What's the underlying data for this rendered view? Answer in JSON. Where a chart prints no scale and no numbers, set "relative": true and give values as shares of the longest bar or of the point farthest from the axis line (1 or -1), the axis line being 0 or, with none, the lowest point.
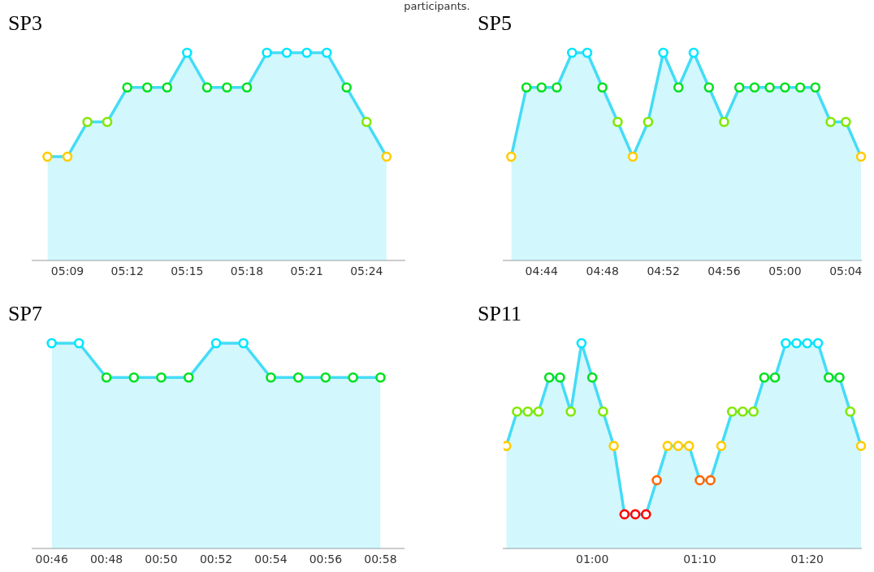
{
  "chart_data": [
    {
      "type": "area",
      "title": "SP3",
      "relative": true,
      "marker": "circle",
      "grid": false,
      "legend": false,
      "annotations": [
        "participants."
      ],
      "xlim": [
        5.1208,
        5.4317
      ],
      "xticks": [
        {
          "value": 5.15,
          "label": "05:09"
        },
        {
          "value": 5.2,
          "label": "05:12"
        },
        {
          "value": 5.25,
          "label": "05:15"
        },
        {
          "value": 5.3,
          "label": "05:18"
        },
        {
          "value": 5.35,
          "label": "05:21"
        },
        {
          "value": 5.4,
          "label": "05:24"
        }
      ],
      "x": [
        5.1333,
        5.15,
        5.1667,
        5.1833,
        5.2,
        5.2167,
        5.2333,
        5.25,
        5.2667,
        5.2833,
        5.3,
        5.3167,
        5.3333,
        5.35,
        5.3667,
        5.3833,
        5.4,
        5.4167
      ],
      "series": [
        {
          "color": "#44dcf6",
          "colors": [
            "#ffcc00",
            "#ffcc00",
            "#80e800",
            "#80e800",
            "#00e020",
            "#00e020",
            "#00e020",
            "#00e5ff",
            "#00e020",
            "#00e020",
            "#00e020",
            "#00e5ff",
            "#00e5ff",
            "#00e5ff",
            "#00e5ff",
            "#00e020",
            "#80e800",
            "#ffcc00"
          ],
          "values": [
            0.5,
            0.5,
            0.667,
            0.667,
            0.833,
            0.833,
            0.833,
            1,
            0.833,
            0.833,
            0.833,
            1,
            1,
            1,
            1,
            0.833,
            0.667,
            0.5
          ]
        }
      ]
    },
    {
      "type": "area",
      "title": "SP5",
      "relative": true,
      "marker": "circle",
      "grid": false,
      "legend": false,
      "xlim": [
        4.6917,
        5.0833
      ],
      "xticks": [
        {
          "value": 4.7333,
          "label": "04:44"
        },
        {
          "value": 4.8,
          "label": "04:48"
        },
        {
          "value": 4.8667,
          "label": "04:52"
        },
        {
          "value": 4.9333,
          "label": "04:56"
        },
        {
          "value": 5,
          "label": "05:00"
        },
        {
          "value": 5.0667,
          "label": "05:04"
        }
      ],
      "x": [
        4.7,
        4.7167,
        4.7333,
        4.75,
        4.7667,
        4.7833,
        4.8,
        4.8167,
        4.8333,
        4.85,
        4.8667,
        4.8833,
        4.9,
        4.9167,
        4.9333,
        4.95,
        4.9667,
        4.9833,
        5,
        5.0167,
        5.0333,
        5.05,
        5.0667,
        5.0833
      ],
      "series": [
        {
          "color": "#44dcf6",
          "colors": [
            "#ffcc00",
            "#00e020",
            "#00e020",
            "#00e020",
            "#00e5ff",
            "#00e5ff",
            "#00e020",
            "#80e800",
            "#ffcc00",
            "#80e800",
            "#00e5ff",
            "#00e020",
            "#00e5ff",
            "#00e020",
            "#80e800",
            "#00e020",
            "#00e020",
            "#00e020",
            "#00e020",
            "#00e020",
            "#00e020",
            "#80e800",
            "#80e800",
            "#ffcc00"
          ],
          "values": [
            0.5,
            0.833,
            0.833,
            0.833,
            1,
            1,
            0.833,
            0.667,
            0.5,
            0.667,
            1,
            0.833,
            1,
            0.833,
            0.667,
            0.833,
            0.833,
            0.833,
            0.833,
            0.833,
            0.833,
            0.667,
            0.667,
            0.5
          ]
        }
      ]
    },
    {
      "type": "area",
      "title": "SP7",
      "relative": true,
      "marker": "circle",
      "grid": false,
      "legend": false,
      "xlim": [
        0.755,
        0.9808
      ],
      "xticks": [
        {
          "value": 0.7667,
          "label": "00:46"
        },
        {
          "value": 0.8,
          "label": "00:48"
        },
        {
          "value": 0.8333,
          "label": "00:50"
        },
        {
          "value": 0.8667,
          "label": "00:52"
        },
        {
          "value": 0.9,
          "label": "00:54"
        },
        {
          "value": 0.9333,
          "label": "00:56"
        },
        {
          "value": 0.9667,
          "label": "00:58"
        }
      ],
      "x": [
        0.7667,
        0.7833,
        0.8,
        0.8167,
        0.8333,
        0.85,
        0.8667,
        0.8833,
        0.9,
        0.9167,
        0.9333,
        0.95,
        0.9667
      ],
      "series": [
        {
          "color": "#44dcf6",
          "colors": [
            "#00e5ff",
            "#00e5ff",
            "#00e020",
            "#00e020",
            "#00e020",
            "#00e020",
            "#00e5ff",
            "#00e5ff",
            "#00e020",
            "#00e020",
            "#00e020",
            "#00e020",
            "#00e020"
          ],
          "values": [
            1,
            1,
            0.833,
            0.833,
            0.833,
            0.833,
            1,
            1,
            0.833,
            0.833,
            0.833,
            0.833,
            0.833
          ]
        }
      ]
    },
    {
      "type": "area",
      "title": "SP11",
      "relative": true,
      "marker": "circle",
      "grid": false,
      "legend": false,
      "xlim": [
        0.8625,
        1.4167
      ],
      "xticks": [
        {
          "value": 1,
          "label": "01:00"
        },
        {
          "value": 1.1667,
          "label": "01:10"
        },
        {
          "value": 1.3333,
          "label": "01:20"
        }
      ],
      "x": [
        0.8667,
        0.8833,
        0.9,
        0.9167,
        0.9333,
        0.95,
        0.9667,
        0.9833,
        1,
        1.0167,
        1.0333,
        1.05,
        1.0667,
        1.0833,
        1.1,
        1.1167,
        1.1333,
        1.15,
        1.1667,
        1.1833,
        1.2,
        1.2167,
        1.2333,
        1.25,
        1.2667,
        1.2833,
        1.3,
        1.3167,
        1.3333,
        1.35,
        1.3667,
        1.3833,
        1.4,
        1.4167
      ],
      "series": [
        {
          "color": "#44dcf6",
          "colors": [
            "#ffcc00",
            "#80e800",
            "#80e800",
            "#80e800",
            "#00e020",
            "#00e020",
            "#80e800",
            "#00e5ff",
            "#00e020",
            "#80e800",
            "#ffcc00",
            "#ff0000",
            "#ff0000",
            "#ff0000",
            "#ff6600",
            "#ffcc00",
            "#ffcc00",
            "#ffcc00",
            "#ff6600",
            "#ff6600",
            "#ffcc00",
            "#80e800",
            "#80e800",
            "#80e800",
            "#00e020",
            "#00e020",
            "#00e5ff",
            "#00e5ff",
            "#00e5ff",
            "#00e5ff",
            "#00e020",
            "#00e020",
            "#80e800",
            "#ffcc00"
          ],
          "values": [
            0.5,
            0.667,
            0.667,
            0.667,
            0.833,
            0.833,
            0.667,
            1,
            0.833,
            0.667,
            0.5,
            0.167,
            0.167,
            0.167,
            0.333,
            0.5,
            0.5,
            0.5,
            0.333,
            0.333,
            0.5,
            0.667,
            0.667,
            0.667,
            0.833,
            0.833,
            1,
            1,
            1,
            1,
            0.833,
            0.833,
            0.667,
            0.5
          ]
        }
      ]
    }
  ]
}
